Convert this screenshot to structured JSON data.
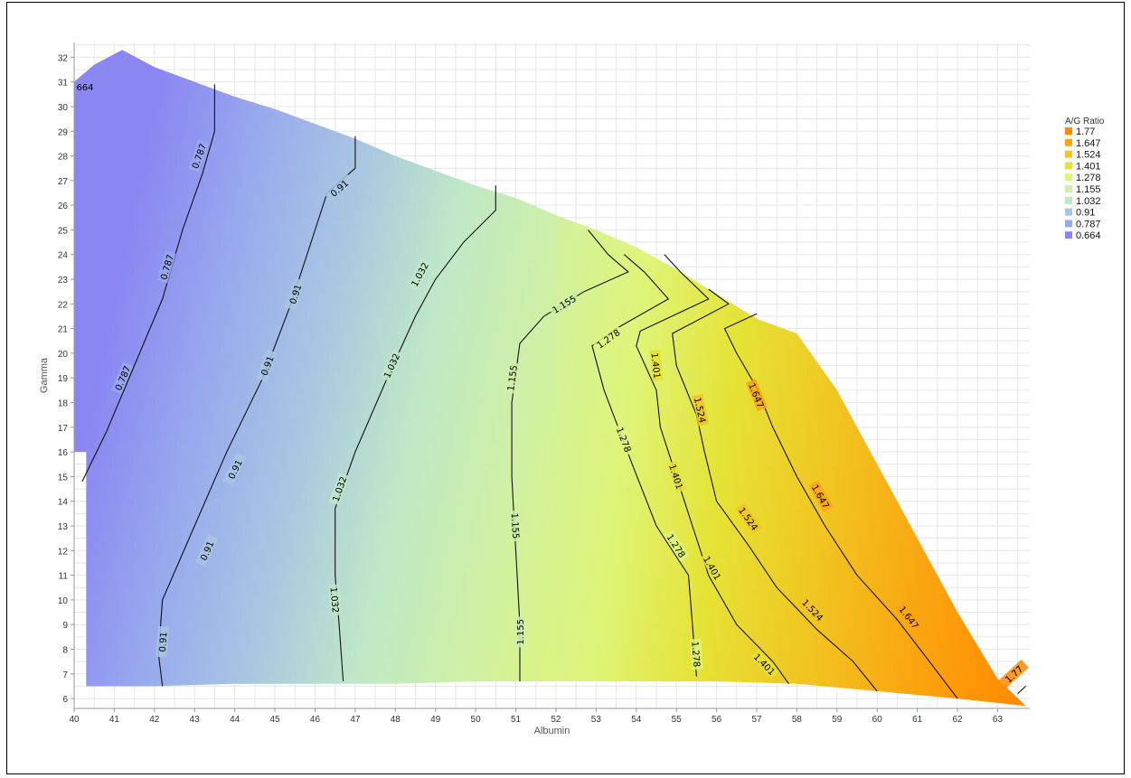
{
  "chart_data": {
    "type": "contour",
    "xlabel": "Albumin",
    "ylabel": "Gamma",
    "xlim": [
      40,
      63.8
    ],
    "ylim": [
      5.6,
      32.6
    ],
    "x_ticks": [
      40,
      41,
      42,
      43,
      44,
      45,
      46,
      47,
      48,
      49,
      50,
      51,
      52,
      53,
      54,
      55,
      56,
      57,
      58,
      59,
      60,
      61,
      62,
      63
    ],
    "y_ticks": [
      6,
      7,
      8,
      9,
      10,
      11,
      12,
      13,
      14,
      15,
      16,
      17,
      18,
      19,
      20,
      21,
      22,
      23,
      24,
      25,
      26,
      27,
      28,
      29,
      30,
      31,
      32
    ],
    "grid": true,
    "legend": {
      "title": "A/G Ratio",
      "position": "right",
      "levels": [
        1.77,
        1.647,
        1.524,
        1.401,
        1.278,
        1.155,
        1.032,
        0.91,
        0.787,
        0.664
      ],
      "level_labels": [
        "1.77",
        "1.647",
        "1.524",
        "1.401",
        "1.278",
        "1.155",
        "1.032",
        "0.91",
        "0.787",
        "0.664"
      ],
      "colors": [
        "#ff8a00",
        "#fba410",
        "#f1c420",
        "#e6e234",
        "#def57a",
        "#cff0a6",
        "#bfe8c8",
        "#a8c6e2",
        "#98a9ee",
        "#8a86f2"
      ]
    },
    "color_scale": {
      "low": 0.664,
      "high": 1.77
    },
    "region_top_boundary": [
      [
        40,
        31.0
      ],
      [
        40.5,
        31.7
      ],
      [
        41.2,
        32.3
      ],
      [
        42,
        31.6
      ],
      [
        43,
        31.0
      ],
      [
        44,
        30.4
      ],
      [
        45,
        29.9
      ],
      [
        46,
        29.3
      ],
      [
        47,
        28.7
      ],
      [
        48,
        28.0
      ],
      [
        49,
        27.4
      ],
      [
        50,
        26.8
      ],
      [
        51,
        26.3
      ],
      [
        52,
        25.6
      ],
      [
        53,
        25.0
      ],
      [
        54,
        24.3
      ],
      [
        55,
        23.4
      ],
      [
        56,
        22.4
      ],
      [
        57,
        21.4
      ],
      [
        58,
        20.8
      ],
      [
        59,
        18.5
      ],
      [
        60,
        15.5
      ],
      [
        61,
        12.5
      ],
      [
        62,
        9.5
      ],
      [
        63,
        6.8
      ],
      [
        63.7,
        5.7
      ]
    ],
    "region_bottom_boundary": [
      [
        63.7,
        5.7
      ],
      [
        62,
        6.0
      ],
      [
        60,
        6.3
      ],
      [
        58,
        6.6
      ],
      [
        56,
        6.7
      ],
      [
        54,
        6.7
      ],
      [
        52,
        6.7
      ],
      [
        50,
        6.7
      ],
      [
        48,
        6.6
      ],
      [
        46,
        6.6
      ],
      [
        44,
        6.6
      ],
      [
        42,
        6.5
      ],
      [
        40.3,
        6.5
      ],
      [
        40.3,
        16.0
      ],
      [
        40,
        16.0
      ]
    ],
    "contours": [
      {
        "level": "0.787",
        "points": [
          [
            40.2,
            14.8
          ],
          [
            40.8,
            16.8
          ],
          [
            41.5,
            19.5
          ],
          [
            42.2,
            22.2
          ],
          [
            42.7,
            25.0
          ],
          [
            43.2,
            27.3
          ],
          [
            43.5,
            29.0
          ],
          [
            43.5,
            30.9
          ]
        ],
        "label_positions": [
          [
            41.2,
            19.0
          ],
          [
            42.3,
            23.5
          ],
          [
            43.1,
            28.0
          ]
        ]
      },
      {
        "level": "0.91",
        "points": [
          [
            42.2,
            6.5
          ],
          [
            42.1,
            7.8
          ],
          [
            42.2,
            10.0
          ],
          [
            43.0,
            13.0
          ],
          [
            43.8,
            16.0
          ],
          [
            44.7,
            19.0
          ],
          [
            45.4,
            22.0
          ],
          [
            46.0,
            25.0
          ],
          [
            46.3,
            26.5
          ],
          [
            47.0,
            27.5
          ],
          [
            47.0,
            28.8
          ]
        ],
        "label_positions": [
          [
            42.2,
            8.3
          ],
          [
            43.3,
            12.0
          ],
          [
            44.0,
            15.3
          ],
          [
            44.8,
            19.5
          ],
          [
            45.5,
            22.4
          ],
          [
            46.6,
            26.7
          ]
        ]
      },
      {
        "level": "1.032",
        "points": [
          [
            46.7,
            6.7
          ],
          [
            46.6,
            9.0
          ],
          [
            46.5,
            11.0
          ],
          [
            46.5,
            13.7
          ],
          [
            47.0,
            16.0
          ],
          [
            47.8,
            19.0
          ],
          [
            48.5,
            21.5
          ],
          [
            49.0,
            23.0
          ],
          [
            49.7,
            24.5
          ],
          [
            50.5,
            25.8
          ],
          [
            50.5,
            26.8
          ]
        ],
        "label_positions": [
          [
            46.5,
            10.0
          ],
          [
            46.6,
            14.5
          ],
          [
            47.9,
            19.5
          ],
          [
            48.6,
            23.2
          ]
        ]
      },
      {
        "level": "1.155",
        "points": [
          [
            51.1,
            6.7
          ],
          [
            51.1,
            9.0
          ],
          [
            51.0,
            12.0
          ],
          [
            50.9,
            15.0
          ],
          [
            50.9,
            18.0
          ],
          [
            51.1,
            20.4
          ],
          [
            51.7,
            21.5
          ],
          [
            52.7,
            22.5
          ],
          [
            53.8,
            23.3
          ],
          [
            53.3,
            24.0
          ],
          [
            52.8,
            25.0
          ]
        ],
        "label_positions": [
          [
            51.1,
            8.7
          ],
          [
            51.0,
            13.0
          ],
          [
            50.9,
            19.0
          ],
          [
            52.2,
            22.0
          ]
        ]
      },
      {
        "level": "1.278",
        "points": [
          [
            55.5,
            6.9
          ],
          [
            55.4,
            9.0
          ],
          [
            55.3,
            11.0
          ],
          [
            54.5,
            13.0
          ],
          [
            53.9,
            15.5
          ],
          [
            53.2,
            18.5
          ],
          [
            52.9,
            20.3
          ],
          [
            53.5,
            21.0
          ],
          [
            54.8,
            22.2
          ],
          [
            54.2,
            23.3
          ],
          [
            53.7,
            24.0
          ]
        ],
        "label_positions": [
          [
            55.5,
            7.8
          ],
          [
            55.0,
            12.2
          ],
          [
            53.7,
            16.5
          ],
          [
            53.3,
            20.6
          ]
        ]
      },
      {
        "level": "1.401",
        "points": [
          [
            57.8,
            6.6
          ],
          [
            57.4,
            7.5
          ],
          [
            56.5,
            9.0
          ],
          [
            55.8,
            11.0
          ],
          [
            55.4,
            13.0
          ],
          [
            55.0,
            15.0
          ],
          [
            54.6,
            17.0
          ],
          [
            54.5,
            18.5
          ],
          [
            54.0,
            20.3
          ],
          [
            54.1,
            20.9
          ],
          [
            55.8,
            22.2
          ],
          [
            55.1,
            23.3
          ],
          [
            54.7,
            24.0
          ]
        ],
        "label_positions": [
          [
            57.2,
            7.4
          ],
          [
            55.9,
            11.3
          ],
          [
            55.0,
            15.0
          ],
          [
            54.5,
            19.5
          ]
        ]
      },
      {
        "level": "1.524",
        "points": [
          [
            60.0,
            6.3
          ],
          [
            59.4,
            7.5
          ],
          [
            58.5,
            8.8
          ],
          [
            57.5,
            10.5
          ],
          [
            56.8,
            12.2
          ],
          [
            56.0,
            14.0
          ],
          [
            55.7,
            16.0
          ],
          [
            55.5,
            17.5
          ],
          [
            55.0,
            19.5
          ],
          [
            54.9,
            20.8
          ],
          [
            56.3,
            22.0
          ],
          [
            55.8,
            22.6
          ]
        ],
        "label_positions": [
          [
            58.4,
            9.6
          ],
          [
            56.8,
            13.3
          ],
          [
            55.6,
            17.7
          ]
        ]
      },
      {
        "level": "1.647",
        "points": [
          [
            62.0,
            6.0
          ],
          [
            61.3,
            7.5
          ],
          [
            60.5,
            9.2
          ],
          [
            59.5,
            11.0
          ],
          [
            58.7,
            13.0
          ],
          [
            58.0,
            15.0
          ],
          [
            57.4,
            17.0
          ],
          [
            57.0,
            18.6
          ],
          [
            56.5,
            20.0
          ],
          [
            56.2,
            21.0
          ],
          [
            57.0,
            21.6
          ]
        ],
        "label_positions": [
          [
            60.8,
            9.3
          ],
          [
            58.6,
            14.2
          ],
          [
            57.0,
            18.3
          ]
        ]
      },
      {
        "level": "1.77",
        "points": [
          [
            63.5,
            6.2
          ],
          [
            63.7,
            6.5
          ]
        ],
        "label_positions": [
          [
            63.4,
            7.0
          ]
        ]
      }
    ],
    "left_edge_label": {
      "text": "664",
      "x": 40.1,
      "y": 30.8
    }
  }
}
